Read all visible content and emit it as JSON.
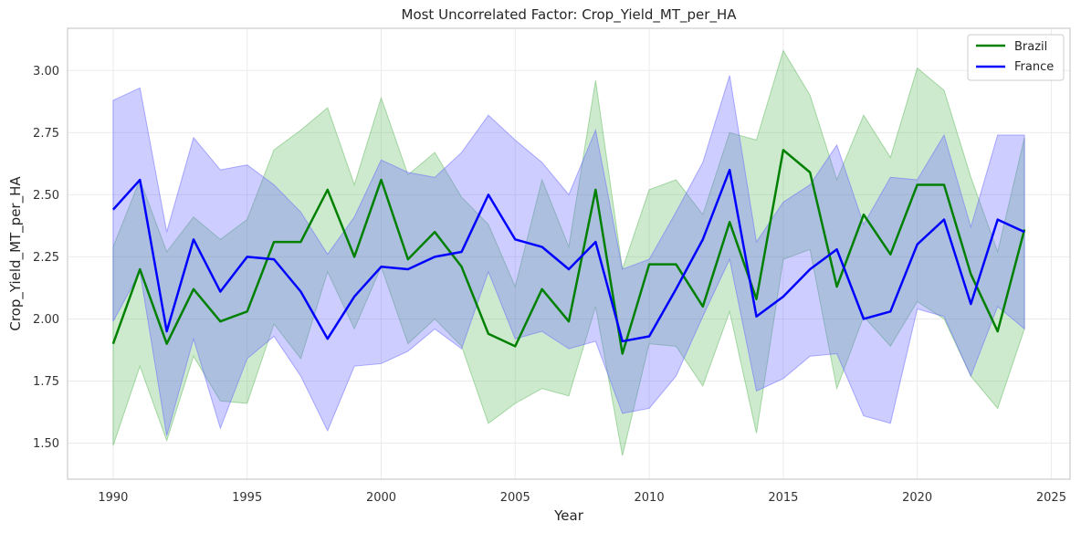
{
  "chart_data": {
    "type": "line",
    "title": "Most Uncorrelated Factor: Crop_Yield_MT_per_HA",
    "xlabel": "Year",
    "ylabel": "Crop_Yield_MT_per_HA",
    "xlim": [
      1988.3,
      2025.7
    ],
    "ylim": [
      1.355,
      3.17
    ],
    "xticks": [
      1990,
      1995,
      2000,
      2005,
      2010,
      2015,
      2020,
      2025
    ],
    "yticks": [
      1.5,
      1.75,
      2.0,
      2.25,
      2.5,
      2.75,
      3.0
    ],
    "ytick_labels": [
      "1.50",
      "1.75",
      "2.00",
      "2.25",
      "2.50",
      "2.75",
      "3.00"
    ],
    "grid": true,
    "legend_position": "top-right",
    "x": [
      1990,
      1991,
      1992,
      1993,
      1994,
      1995,
      1996,
      1997,
      1998,
      1999,
      2000,
      2001,
      2002,
      2003,
      2004,
      2005,
      2006,
      2007,
      2008,
      2009,
      2010,
      2011,
      2012,
      2013,
      2014,
      2015,
      2016,
      2017,
      2018,
      2019,
      2020,
      2021,
      2022,
      2023,
      2024
    ],
    "series": [
      {
        "name": "Brazil",
        "color": "#008000",
        "band_color": "#5cb85c",
        "values": [
          1.9,
          2.2,
          1.9,
          2.12,
          1.99,
          2.03,
          2.31,
          2.31,
          2.52,
          2.25,
          2.56,
          2.24,
          2.35,
          2.21,
          1.94,
          1.89,
          2.12,
          1.99,
          2.52,
          1.86,
          2.22,
          2.22,
          2.05,
          2.39,
          2.08,
          2.68,
          2.59,
          2.13,
          2.42,
          2.26,
          2.54,
          2.54,
          2.18,
          1.95,
          2.36
        ],
        "lower": [
          1.49,
          1.81,
          1.51,
          1.85,
          1.67,
          1.66,
          1.98,
          1.84,
          2.19,
          1.96,
          2.21,
          1.9,
          2.0,
          1.89,
          1.58,
          1.66,
          1.72,
          1.69,
          2.05,
          1.45,
          1.9,
          1.89,
          1.73,
          2.03,
          1.54,
          2.24,
          2.28,
          1.72,
          2.01,
          1.89,
          2.07,
          2.0,
          1.77,
          1.64,
          1.96
        ],
        "upper": [
          2.29,
          2.56,
          2.27,
          2.41,
          2.32,
          2.4,
          2.68,
          2.76,
          2.85,
          2.54,
          2.89,
          2.58,
          2.67,
          2.49,
          2.38,
          2.13,
          2.56,
          2.29,
          2.96,
          2.2,
          2.52,
          2.56,
          2.42,
          2.75,
          2.72,
          3.08,
          2.9,
          2.56,
          2.82,
          2.65,
          3.01,
          2.92,
          2.57,
          2.27,
          2.73
        ]
      },
      {
        "name": "France",
        "color": "#0000ff",
        "band_color": "#6666ff",
        "values": [
          2.44,
          2.56,
          1.95,
          2.32,
          2.11,
          2.25,
          2.24,
          2.11,
          1.92,
          2.09,
          2.21,
          2.2,
          2.25,
          2.27,
          2.5,
          2.32,
          2.29,
          2.2,
          2.31,
          1.91,
          1.93,
          2.12,
          2.32,
          2.6,
          2.01,
          2.09,
          2.2,
          2.28,
          2.0,
          2.03,
          2.3,
          2.4,
          2.06,
          2.4,
          2.35
        ]
      }
    ],
    "france_band": {
      "lower": [
        1.99,
        2.19,
        1.53,
        1.92,
        1.56,
        1.84,
        1.93,
        1.77,
        1.55,
        1.81,
        1.82,
        1.87,
        1.96,
        1.88,
        2.19,
        1.92,
        1.95,
        1.88,
        1.91,
        1.62,
        1.64,
        1.77,
        2.01,
        2.24,
        1.71,
        1.76,
        1.85,
        1.86,
        1.61,
        1.58,
        2.04,
        2.01,
        1.77,
        2.05,
        1.96
      ],
      "upper": [
        2.88,
        2.93,
        2.35,
        2.73,
        2.6,
        2.62,
        2.54,
        2.43,
        2.26,
        2.41,
        2.64,
        2.59,
        2.57,
        2.67,
        2.82,
        2.72,
        2.63,
        2.5,
        2.76,
        2.2,
        2.24,
        2.43,
        2.63,
        2.98,
        2.31,
        2.47,
        2.54,
        2.7,
        2.38,
        2.57,
        2.56,
        2.74,
        2.37,
        2.74,
        2.74
      ]
    }
  }
}
